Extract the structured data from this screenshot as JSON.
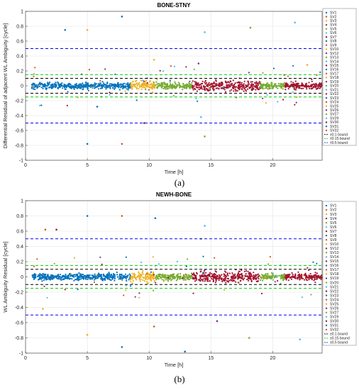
{
  "legend": {
    "items": [
      "SV1",
      "SV2",
      "SV3",
      "SV4",
      "SV5",
      "SV6",
      "SV7",
      "SV8",
      "SV9",
      "SV10",
      "SV12",
      "SV13",
      "SV14",
      "SV15",
      "SV16",
      "SV17",
      "SV18",
      "SV19",
      "SV20",
      "SV21",
      "SV22",
      "SV23",
      "SV24",
      "SV25",
      "SV26",
      "SV27",
      "SV29",
      "SV30",
      "SV31",
      "SV32"
    ],
    "bounds": [
      "±0.1 bound",
      "±0.15 bound",
      "±0.5 bound"
    ]
  },
  "colors": {
    "sv": [
      "#0072BD",
      "#D95319",
      "#EDB120",
      "#7E2F8E",
      "#77AC30",
      "#4DBEEE",
      "#A2142F",
      "#0072BD",
      "#D95319",
      "#EDB120",
      "#7E2F8E",
      "#77AC30",
      "#4DBEEE",
      "#A2142F",
      "#0072BD",
      "#D95319",
      "#EDB120",
      "#7E2F8E",
      "#77AC30",
      "#4DBEEE",
      "#A2142F",
      "#0072BD",
      "#D95319",
      "#EDB120",
      "#7E2F8E",
      "#77AC30",
      "#4DBEEE",
      "#A2142F",
      "#0072BD",
      "#D95319"
    ],
    "bound_0_1": "#000000",
    "bound_0_15": "#00CC00",
    "bound_0_5": "#0000FF"
  },
  "chart_data": [
    {
      "type": "scatter",
      "title": "BONE-STNY",
      "xlabel": "Time [h]",
      "ylabel": "Differential Residual of adjacent WL Ambiguity [cycle]",
      "xlim": [
        0,
        24
      ],
      "ylim": [
        -1,
        1
      ],
      "xticks": [
        0,
        5,
        10,
        15,
        20
      ],
      "yticks": [
        -1,
        -0.8,
        -0.6,
        -0.4,
        -0.2,
        0,
        0.2,
        0.4,
        0.6,
        0.8,
        1
      ],
      "grid": true,
      "legend_position": "right",
      "bounds": [
        0.1,
        0.15,
        0.5
      ],
      "caption": "(a)",
      "dense_bands": [
        {
          "sv": 7,
          "x": [
            0.5,
            5.0
          ],
          "spread": 0.03
        },
        {
          "sv": 14,
          "x": [
            5.0,
            8.5
          ],
          "spread": 0.03
        },
        {
          "sv": 2,
          "x": [
            8.5,
            10.5
          ],
          "spread": 0.04
        },
        {
          "sv": 18,
          "x": [
            10.5,
            13.5
          ],
          "spread": 0.03
        },
        {
          "sv": 13,
          "x": [
            13.5,
            19.0
          ],
          "spread": 0.05
        },
        {
          "sv": 4,
          "x": [
            19.0,
            21.0
          ],
          "spread": 0.03
        },
        {
          "sv": 20,
          "x": [
            21.0,
            24.0
          ],
          "spread": 0.03
        }
      ],
      "outliers": [
        {
          "sv": 0,
          "x": 3.2,
          "y": 0.75
        },
        {
          "sv": 2,
          "x": 5.0,
          "y": 0.75
        },
        {
          "sv": 0,
          "x": 7.8,
          "y": 0.93
        },
        {
          "sv": 5,
          "x": 14.5,
          "y": 0.72
        },
        {
          "sv": 11,
          "x": 18.2,
          "y": 0.78
        },
        {
          "sv": 5,
          "x": 21.8,
          "y": 0.85
        },
        {
          "sv": 0,
          "x": 5.0,
          "y": -0.78
        },
        {
          "sv": 1,
          "x": 7.8,
          "y": -0.78
        },
        {
          "sv": 4,
          "x": 14.5,
          "y": -0.68
        },
        {
          "sv": 9,
          "x": 10.4,
          "y": 0.35
        },
        {
          "sv": 3,
          "x": 14.0,
          "y": 0.3
        },
        {
          "sv": 12,
          "x": 14.2,
          "y": -0.42
        },
        {
          "sv": 0,
          "x": 5.8,
          "y": -0.28
        },
        {
          "sv": 6,
          "x": 9.6,
          "y": -0.5
        },
        {
          "sv": 16,
          "x": 22.8,
          "y": 0.28
        }
      ]
    },
    {
      "type": "scatter",
      "title": "NEWH-BONE",
      "xlabel": "Time [h]",
      "ylabel": "WL Ambiguity Residual [cycle]",
      "xlim": [
        0,
        24
      ],
      "ylim": [
        -1,
        1
      ],
      "xticks": [
        0,
        5,
        10,
        15,
        20
      ],
      "yticks": [
        -1,
        -0.8,
        -0.6,
        -0.4,
        -0.2,
        0,
        0.2,
        0.4,
        0.6,
        0.8,
        1
      ],
      "grid": true,
      "legend_position": "right",
      "bounds": [
        0.1,
        0.15,
        0.5
      ],
      "caption": "(b)",
      "dense_bands": [
        {
          "sv": 7,
          "x": [
            0.5,
            5.0
          ],
          "spread": 0.03
        },
        {
          "sv": 14,
          "x": [
            5.0,
            8.5
          ],
          "spread": 0.03
        },
        {
          "sv": 2,
          "x": [
            8.5,
            10.5
          ],
          "spread": 0.05
        },
        {
          "sv": 18,
          "x": [
            10.5,
            13.5
          ],
          "spread": 0.03
        },
        {
          "sv": 13,
          "x": [
            13.5,
            19.0
          ],
          "spread": 0.05
        },
        {
          "sv": 4,
          "x": [
            19.0,
            21.0
          ],
          "spread": 0.03
        },
        {
          "sv": 20,
          "x": [
            21.0,
            24.0
          ],
          "spread": 0.03
        }
      ],
      "outliers": [
        {
          "sv": 1,
          "x": 1.6,
          "y": 0.62
        },
        {
          "sv": 6,
          "x": 2.5,
          "y": 0.62
        },
        {
          "sv": 0,
          "x": 5.0,
          "y": 0.8
        },
        {
          "sv": 1,
          "x": 7.8,
          "y": 0.8
        },
        {
          "sv": 0,
          "x": 10.5,
          "y": 0.77
        },
        {
          "sv": 5,
          "x": 14.5,
          "y": 0.67
        },
        {
          "sv": 2,
          "x": 1.4,
          "y": -0.42
        },
        {
          "sv": 2,
          "x": 5.0,
          "y": -0.76
        },
        {
          "sv": 0,
          "x": 7.8,
          "y": -0.92
        },
        {
          "sv": 1,
          "x": 10.4,
          "y": -0.65
        },
        {
          "sv": 0,
          "x": 12.9,
          "y": -0.98
        },
        {
          "sv": 3,
          "x": 15.5,
          "y": -0.58
        },
        {
          "sv": 11,
          "x": 18.1,
          "y": -0.8
        },
        {
          "sv": 5,
          "x": 22.2,
          "y": -0.82
        },
        {
          "sv": 4,
          "x": 14.2,
          "y": 0.5
        }
      ]
    }
  ]
}
